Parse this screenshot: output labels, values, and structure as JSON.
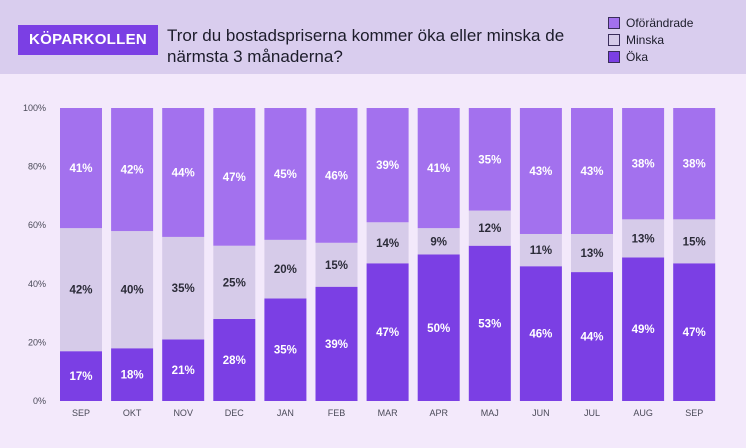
{
  "brand": "KÖPARKOLLEN",
  "title": "Tror du bostadspriserna kommer öka eller minska de närmsta 3 månaderna?",
  "legend": [
    {
      "label": "Oförändrade",
      "color": "#a371ee"
    },
    {
      "label": "Minska",
      "color": "#d6cbe9"
    },
    {
      "label": "Öka",
      "color": "#7b3fe4"
    }
  ],
  "chart_data": {
    "type": "bar",
    "stacked": true,
    "categories": [
      "SEP",
      "OKT",
      "NOV",
      "DEC",
      "JAN",
      "FEB",
      "MAR",
      "APR",
      "MAJ",
      "JUN",
      "JUL",
      "AUG",
      "SEP"
    ],
    "series": [
      {
        "name": "Öka",
        "color": "#7b3fe4",
        "label_color": "#ffffff",
        "values": [
          17,
          18,
          21,
          28,
          35,
          39,
          47,
          50,
          53,
          46,
          44,
          49,
          47
        ]
      },
      {
        "name": "Minska",
        "color": "#d6cbe9",
        "label_color": "#2b2b38",
        "values": [
          42,
          40,
          35,
          25,
          20,
          15,
          14,
          9,
          12,
          11,
          13,
          13,
          15
        ]
      },
      {
        "name": "Oförändrade",
        "color": "#a371ee",
        "label_color": "#ffffff",
        "values": [
          41,
          42,
          44,
          47,
          45,
          46,
          39,
          41,
          35,
          43,
          43,
          38,
          38
        ]
      }
    ],
    "y_ticks": [
      "0%",
      "20%",
      "40%",
      "60%",
      "80%",
      "100%"
    ],
    "ylim": [
      0,
      100
    ],
    "value_suffix": "%"
  }
}
